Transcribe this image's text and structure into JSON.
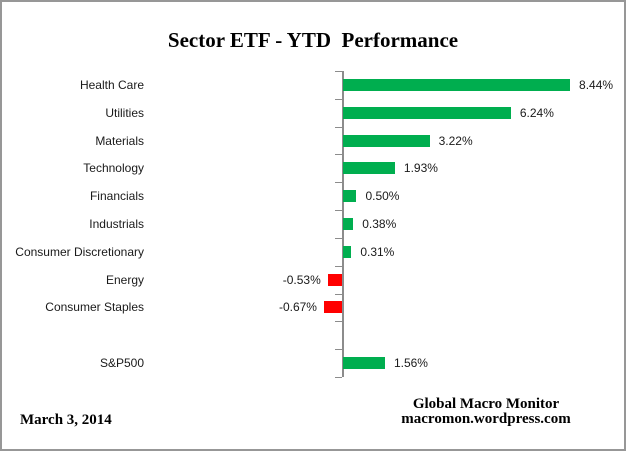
{
  "title": "Sector ETF - YTD  Performance",
  "footer": {
    "date": "March 3, 2014",
    "source_line1": "Global Macro Monitor",
    "source_line2": "macromon.wordpress.com"
  },
  "chart_data": {
    "type": "bar",
    "orientation": "horizontal",
    "title": "Sector ETF - YTD  Performance",
    "categories": [
      "Health Care",
      "Utilities",
      "Materials",
      "Technology",
      "Financials",
      "Industrials",
      "Consumer Discretionary",
      "Energy",
      "Consumer Staples",
      "",
      "S&P500"
    ],
    "values": [
      8.44,
      6.24,
      3.22,
      1.93,
      0.5,
      0.38,
      0.31,
      -0.53,
      -0.67,
      null,
      1.56
    ],
    "data_labels": [
      "8.44%",
      "6.24%",
      "3.22%",
      "1.93%",
      "0.50%",
      "0.38%",
      "0.31%",
      "-0.53%",
      "-0.67%",
      "",
      "1.56%"
    ],
    "xlabel": "",
    "ylabel": "",
    "xlim": [
      -1,
      9
    ],
    "gridlines": false,
    "legend": "none",
    "value_axis_ticks_visible": false,
    "colors": {
      "positive_bar": "#00AE4F",
      "negative_bar": "#FF0000",
      "axis_line": "#8C8C8C",
      "text": "#000000"
    }
  }
}
